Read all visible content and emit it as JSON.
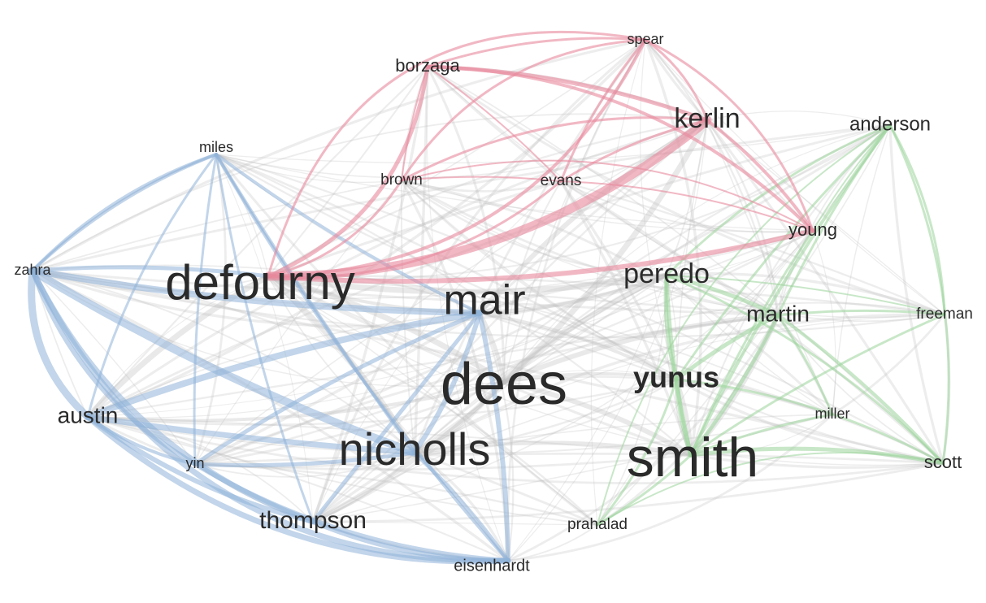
{
  "network": {
    "clusters": {
      "grey": {
        "color": "#bfbfbf"
      },
      "red": {
        "color": "#e8899c"
      },
      "blue": {
        "color": "#8fb3d9"
      },
      "green": {
        "color": "#9bd39b"
      }
    },
    "nodes": [
      {
        "id": "defourny",
        "label": "defourny",
        "cluster": "red"
      },
      {
        "id": "mair",
        "label": "mair",
        "cluster": "blue"
      },
      {
        "id": "dees",
        "label": "dees",
        "cluster": "grey"
      },
      {
        "id": "smith",
        "label": "smith",
        "cluster": "green"
      },
      {
        "id": "nicholls",
        "label": "nicholls",
        "cluster": "blue"
      },
      {
        "id": "yunus",
        "label": "yunus",
        "cluster": "green"
      },
      {
        "id": "kerlin",
        "label": "kerlin",
        "cluster": "red"
      },
      {
        "id": "peredo",
        "label": "peredo",
        "cluster": "green"
      },
      {
        "id": "martin",
        "label": "martin",
        "cluster": "green"
      },
      {
        "id": "austin",
        "label": "austin",
        "cluster": "blue"
      },
      {
        "id": "thompson",
        "label": "thompson",
        "cluster": "blue"
      },
      {
        "id": "anderson",
        "label": "anderson",
        "cluster": "green"
      },
      {
        "id": "borzaga",
        "label": "borzaga",
        "cluster": "red"
      },
      {
        "id": "young",
        "label": "young",
        "cluster": "red"
      },
      {
        "id": "scott",
        "label": "scott",
        "cluster": "green"
      },
      {
        "id": "spear",
        "label": "spear",
        "cluster": "red"
      },
      {
        "id": "miles",
        "label": "miles",
        "cluster": "blue"
      },
      {
        "id": "zahra",
        "label": "zahra",
        "cluster": "blue"
      },
      {
        "id": "brown",
        "label": "brown",
        "cluster": "red"
      },
      {
        "id": "evans",
        "label": "evans",
        "cluster": "red"
      },
      {
        "id": "freeman",
        "label": "freeman",
        "cluster": "green"
      },
      {
        "id": "miller",
        "label": "miller",
        "cluster": "green"
      },
      {
        "id": "yin",
        "label": "yin",
        "cluster": "blue"
      },
      {
        "id": "prahalad",
        "label": "prahalad",
        "cluster": "grey"
      },
      {
        "id": "eisenhardt",
        "label": "eisenhardt",
        "cluster": "blue"
      }
    ]
  }
}
